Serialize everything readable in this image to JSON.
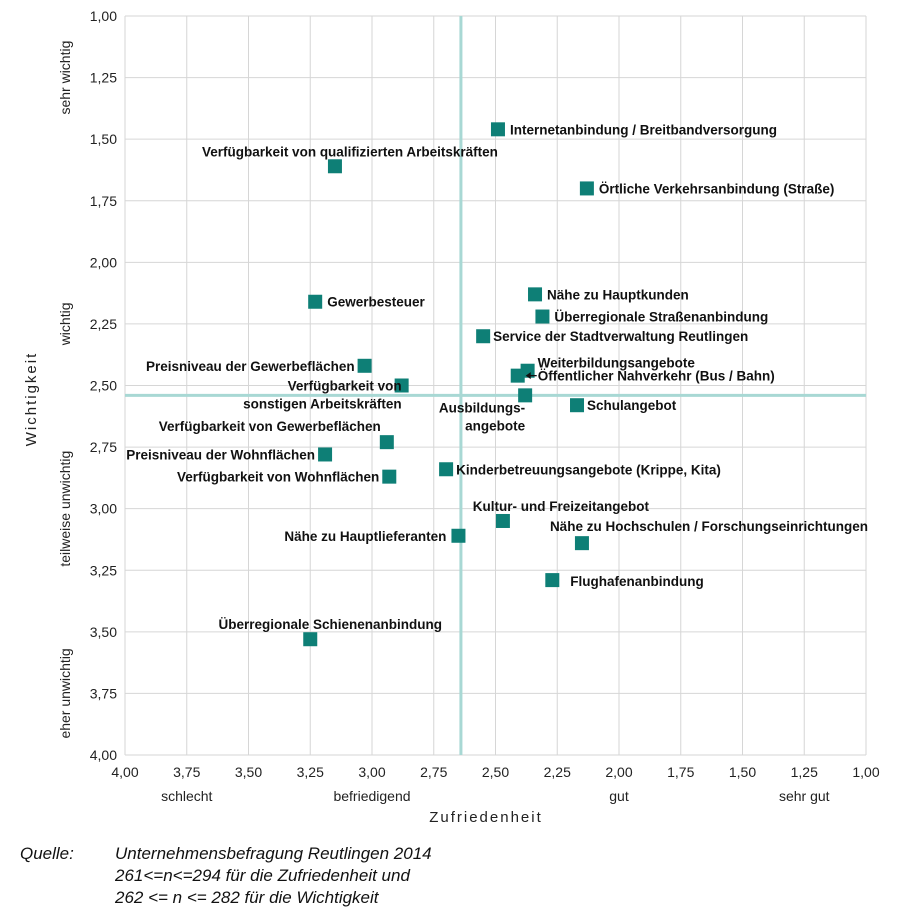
{
  "chart_data": {
    "type": "scatter",
    "xlabel": "Zufriedenheit",
    "ylabel": "Wichtigkeit",
    "xlim": [
      4.0,
      1.0
    ],
    "ylim": [
      1.0,
      4.0
    ],
    "x_reversed": true,
    "y_reversed": true,
    "x_ticks": [
      "4,00",
      "3,75",
      "3,50",
      "3,25",
      "3,00",
      "2,75",
      "2,50",
      "2,25",
      "2,00",
      "1,75",
      "1,50",
      "1,25",
      "1,00"
    ],
    "y_ticks": [
      "1,00",
      "1,25",
      "1,50",
      "1,75",
      "2,00",
      "2,25",
      "2,50",
      "2,75",
      "3,00",
      "3,25",
      "3,50",
      "3,75",
      "4,00"
    ],
    "x_categories": [
      {
        "label": "schlecht",
        "value": 3.75
      },
      {
        "label": "befriedigend",
        "value": 3.0
      },
      {
        "label": "gut",
        "value": 2.0
      },
      {
        "label": "sehr gut",
        "value": 1.25
      }
    ],
    "y_categories": [
      {
        "label": "sehr wichtig",
        "value": 1.25
      },
      {
        "label": "wichtig",
        "value": 2.25
      },
      {
        "label": "teilweise unwichtig",
        "value": 3.0
      },
      {
        "label": "eher unwichtig",
        "value": 3.75
      }
    ],
    "reference_lines": {
      "x": 2.64,
      "y": 2.54
    },
    "grid": true,
    "marker_color": "#0e7f76",
    "reference_line_color": "#a8d8d4",
    "grid_color": "#d6d6d6",
    "points": [
      {
        "label": "Internetanbindung / Breitbandversorgung",
        "x": 2.49,
        "y": 1.46
      },
      {
        "label": "Örtliche Verkehrsanbindung (Straße)",
        "x": 2.13,
        "y": 1.7
      },
      {
        "label": "Verfügbarkeit von qualifizierten Arbeitskräften",
        "x": 3.15,
        "y": 1.61
      },
      {
        "label": "Nähe zu Hauptkunden",
        "x": 2.34,
        "y": 2.13
      },
      {
        "label": "Gewerbesteuer",
        "x": 3.23,
        "y": 2.16
      },
      {
        "label": "Überregionale Straßenanbindung",
        "x": 2.31,
        "y": 2.22
      },
      {
        "label": "Service der Stadtverwaltung Reutlingen",
        "x": 2.55,
        "y": 2.3
      },
      {
        "label": "Preisniveau der Gewerbeflächen",
        "x": 3.03,
        "y": 2.42
      },
      {
        "label": "Weiterbildungsangebote",
        "x": 2.37,
        "y": 2.44
      },
      {
        "label": "Öffentlicher Nahverkehr (Bus / Bahn)",
        "x": 2.41,
        "y": 2.46
      },
      {
        "label": "Verfügbarkeit von sonstigen Arbeitskräften",
        "x": 2.88,
        "y": 2.5
      },
      {
        "label": "Ausbildungsangebote",
        "x": 2.38,
        "y": 2.54
      },
      {
        "label": "Schulangebot",
        "x": 2.17,
        "y": 2.58
      },
      {
        "label": "Verfügbarkeit von Gewerbeflächen",
        "x": 2.94,
        "y": 2.73
      },
      {
        "label": "Preisniveau der Wohnflächen",
        "x": 3.19,
        "y": 2.78
      },
      {
        "label": "Kinderbetreuungsangebote (Krippe, Kita)",
        "x": 2.7,
        "y": 2.84
      },
      {
        "label": "Verfügbarkeit von Wohnflächen",
        "x": 2.93,
        "y": 2.87
      },
      {
        "label": "Kultur- und Freizeitangebot",
        "x": 2.47,
        "y": 3.05
      },
      {
        "label": "Nähe zu Hauptlieferanten",
        "x": 2.65,
        "y": 3.11
      },
      {
        "label": "Nähe zu Hochschulen / Forschungseinrichtungen",
        "x": 2.15,
        "y": 3.14
      },
      {
        "label": "Flughafenanbindung",
        "x": 2.27,
        "y": 3.29
      },
      {
        "label": "Überregionale Schienenanbindung",
        "x": 3.25,
        "y": 3.53
      }
    ]
  },
  "source": {
    "label": "Quelle:",
    "line1": "Unternehmensbefragung Reutlingen 2014",
    "line2": "261<=n<=294 für die Zufriedenheit und",
    "line3": "262 <= n <= 282 für die Wichtigkeit"
  }
}
